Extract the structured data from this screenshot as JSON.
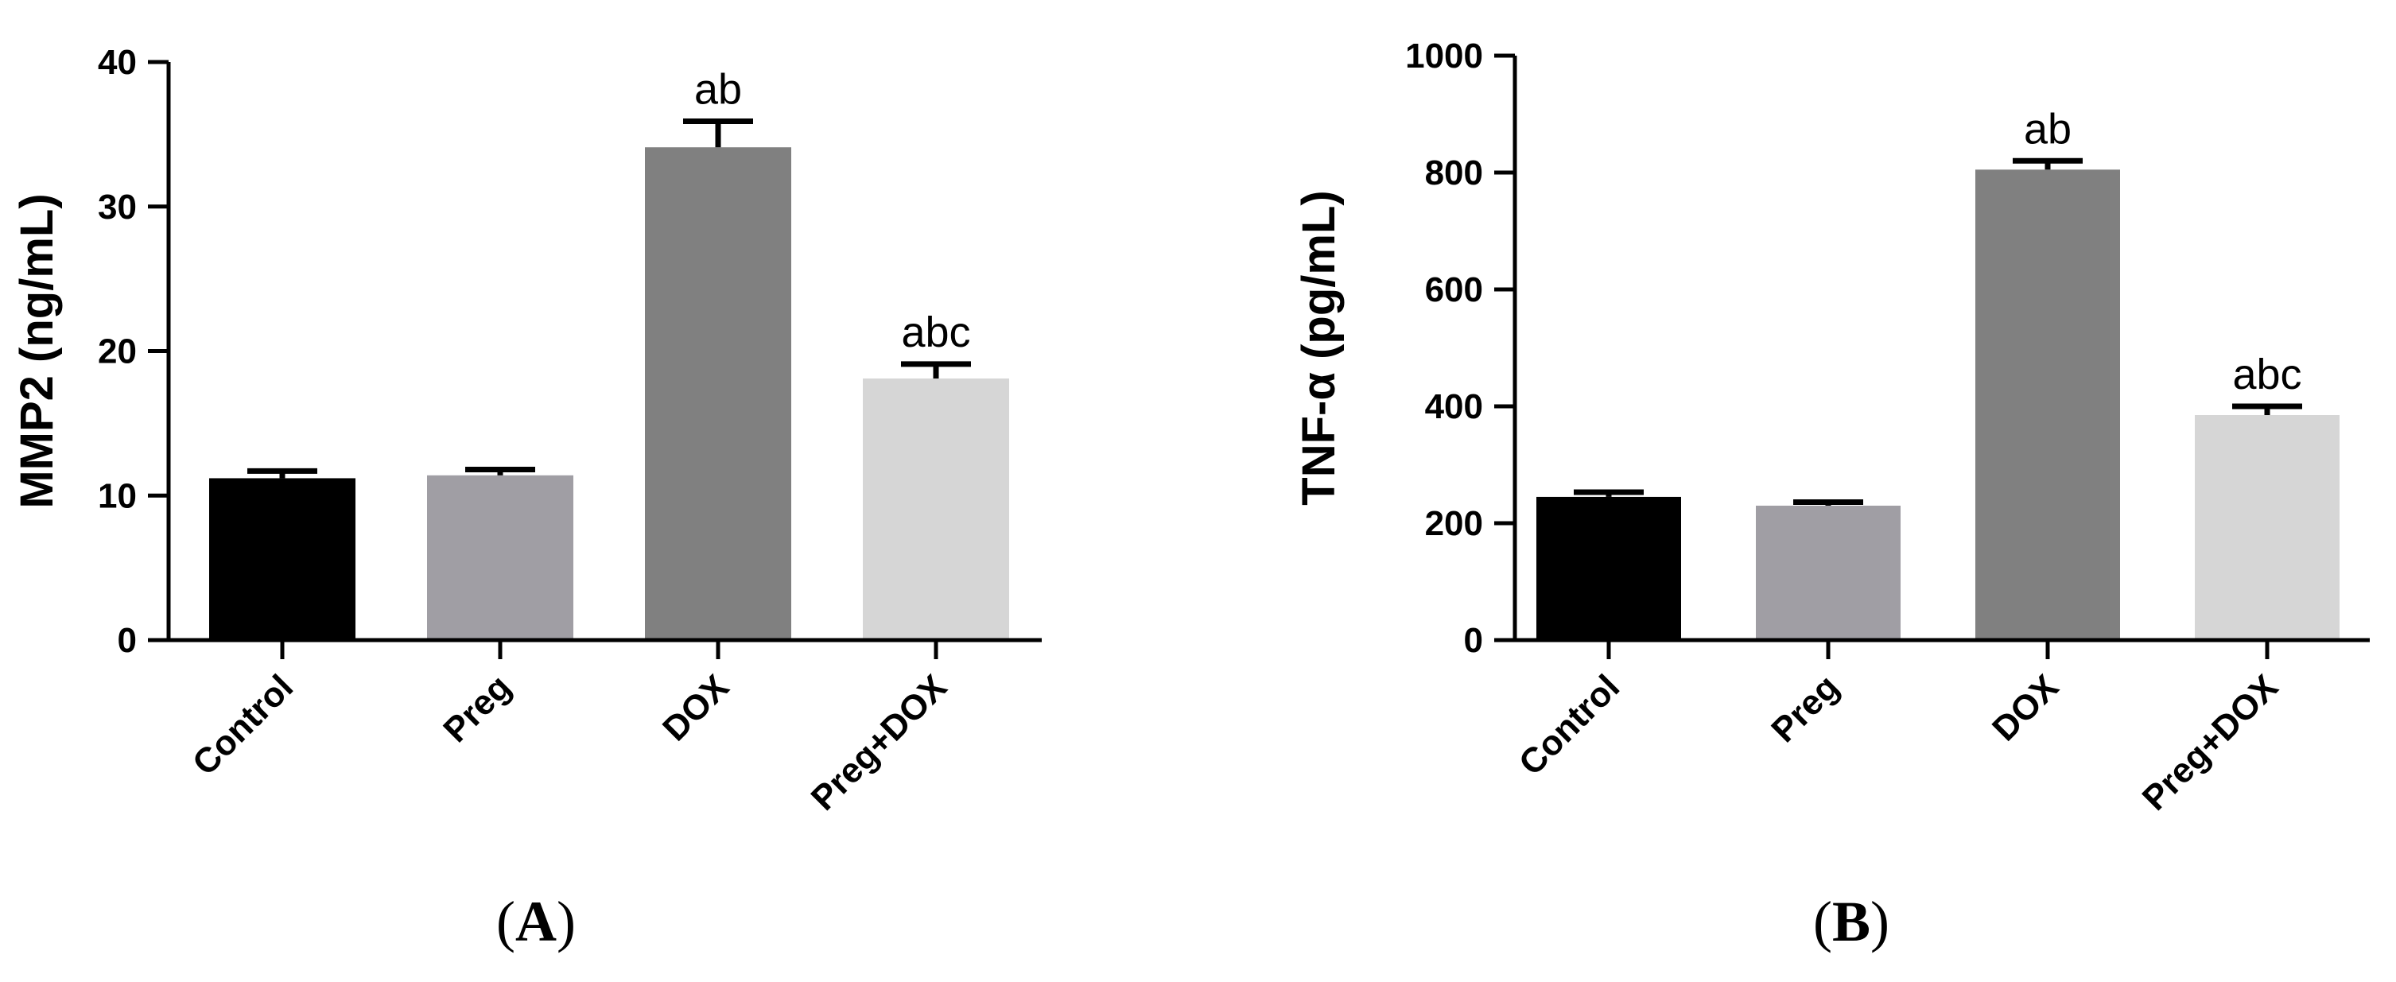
{
  "chart_data": [
    {
      "type": "bar",
      "panel_label": "A",
      "categories": [
        "Control",
        "Preg",
        "DOX",
        "Preg+DOX"
      ],
      "values": [
        11.2,
        11.4,
        34.1,
        18.1
      ],
      "errors": [
        0.5,
        0.4,
        1.8,
        1.0
      ],
      "annotations": [
        "",
        "",
        "ab",
        "abc"
      ],
      "ylabel": "MMP2 (ng/mL)",
      "ylim": [
        0,
        40
      ],
      "yticks": [
        0,
        10,
        20,
        30,
        40
      ],
      "bar_colors": [
        "#000000",
        "#a09ea4",
        "#808080",
        "#d6d6d6"
      ],
      "grid": false
    },
    {
      "type": "bar",
      "panel_label": "B",
      "categories": [
        "Control",
        "Preg",
        "DOX",
        "Preg+DOX"
      ],
      "values": [
        245,
        230,
        805,
        385
      ],
      "errors": [
        8,
        6,
        15,
        15
      ],
      "annotations": [
        "",
        "",
        "ab",
        "abc"
      ],
      "ylabel": "TNF-α (pg/mL)",
      "ylim": [
        0,
        1000
      ],
      "yticks": [
        0,
        200,
        400,
        600,
        800,
        1000
      ],
      "bar_colors": [
        "#000000",
        "#a09ea4",
        "#808080",
        "#d6d6d6"
      ],
      "grid": false
    }
  ]
}
